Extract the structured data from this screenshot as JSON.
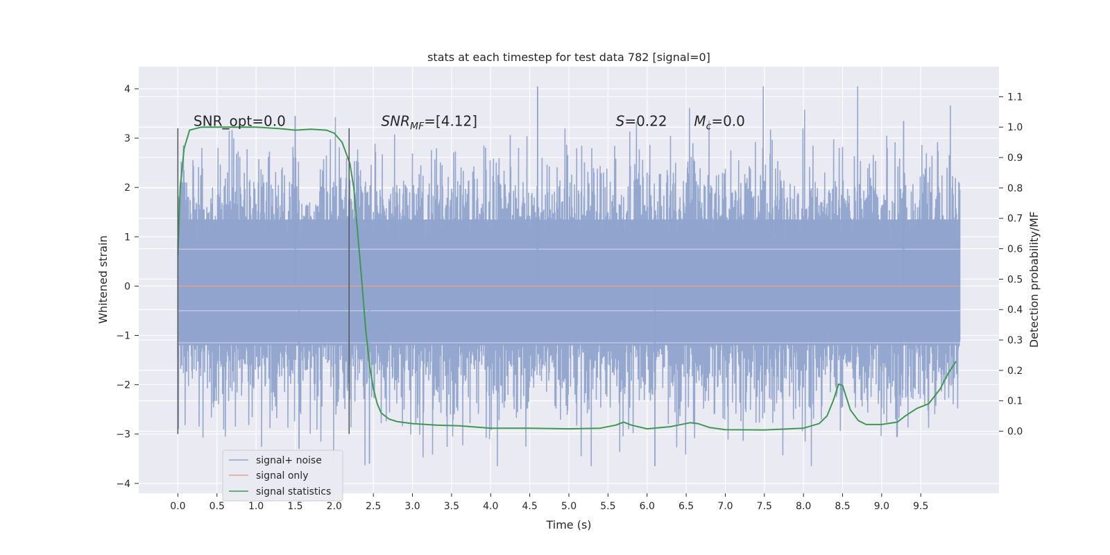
{
  "chart_data": {
    "type": "line",
    "title": "stats at each timestep for test data 782 [signal=0]",
    "xlabel": "Time (s)",
    "ylabel_left": "Whitened strain",
    "ylabel_right": "Detection probability/MF",
    "xlim": [
      -0.5,
      10.5
    ],
    "ylim_left": [
      -4.2,
      4.45
    ],
    "ylim_right": [
      -0.204,
      1.199
    ],
    "x_ticks": [
      0.0,
      0.5,
      1.0,
      1.5,
      2.0,
      2.5,
      3.0,
      3.5,
      4.0,
      4.5,
      5.0,
      5.5,
      6.0,
      6.5,
      7.0,
      7.5,
      8.0,
      8.5,
      9.0,
      9.5
    ],
    "y_ticks_left": [
      4,
      3,
      2,
      1,
      0,
      -1,
      -2,
      -3,
      -4
    ],
    "y_ticks_right": [
      1.1,
      1.0,
      0.9,
      0.8,
      0.7,
      0.6,
      0.5,
      0.4,
      0.3,
      0.2,
      0.1,
      0.0
    ],
    "grid": true,
    "legend_position": "lower-left",
    "annotations": [
      {
        "text": "SNR_opt=0.0",
        "x": 0.2,
        "y": 3.25
      },
      {
        "text": "SNR_MF=[4.12]",
        "x": 2.6,
        "y": 3.25
      },
      {
        "text": "S=0.22",
        "x": 5.6,
        "y": 3.25
      },
      {
        "text": "M_c=0.0",
        "x": 6.6,
        "y": 3.25
      }
    ],
    "vlines": [
      {
        "x": 0.0,
        "ymin": -3.0,
        "ymax": 3.2
      },
      {
        "x": 2.19,
        "ymin": -3.0,
        "ymax": 3.2
      }
    ],
    "series": [
      {
        "name": "signal+ noise",
        "axis": "left",
        "color": "#8fa3cc",
        "kind": "noise",
        "x_range": [
          0.0,
          10.0
        ],
        "approx_std": 0.9,
        "approx_extremes": {
          "max": 4.05,
          "min": -3.65
        }
      },
      {
        "name": "signal only",
        "axis": "left",
        "color": "#e0a18c",
        "x": [
          0.0,
          10.0
        ],
        "y": [
          0.0,
          0.0
        ]
      },
      {
        "name": "signal statistics",
        "axis": "right",
        "color": "#3a9a4e",
        "x": [
          0.0,
          0.03,
          0.08,
          0.15,
          0.3,
          0.6,
          1.0,
          1.3,
          1.5,
          1.7,
          1.9,
          2.0,
          2.1,
          2.2,
          2.25,
          2.3,
          2.35,
          2.4,
          2.45,
          2.5,
          2.55,
          2.6,
          2.7,
          2.8,
          3.0,
          3.3,
          3.6,
          4.0,
          4.5,
          5.0,
          5.4,
          5.6,
          5.7,
          5.8,
          6.0,
          6.3,
          6.55,
          6.65,
          6.8,
          7.0,
          7.5,
          8.0,
          8.2,
          8.3,
          8.38,
          8.45,
          8.5,
          8.55,
          8.6,
          8.7,
          8.8,
          9.0,
          9.2,
          9.3,
          9.45,
          9.6,
          9.75,
          9.85,
          9.95
        ],
        "y": [
          0.58,
          0.8,
          0.93,
          0.99,
          1.0,
          1.0,
          1.0,
          0.995,
          0.99,
          0.993,
          0.99,
          0.98,
          0.95,
          0.88,
          0.8,
          0.65,
          0.5,
          0.34,
          0.22,
          0.14,
          0.09,
          0.06,
          0.04,
          0.032,
          0.025,
          0.02,
          0.018,
          0.01,
          0.01,
          0.008,
          0.01,
          0.02,
          0.03,
          0.02,
          0.008,
          0.015,
          0.028,
          0.025,
          0.012,
          0.005,
          0.004,
          0.01,
          0.025,
          0.05,
          0.1,
          0.155,
          0.15,
          0.11,
          0.07,
          0.035,
          0.022,
          0.022,
          0.03,
          0.05,
          0.075,
          0.09,
          0.14,
          0.19,
          0.23
        ]
      }
    ]
  }
}
